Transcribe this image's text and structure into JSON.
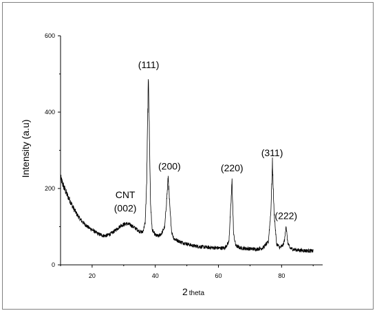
{
  "chart_data": {
    "type": "line",
    "title": "",
    "xlabel_main": "2",
    "xlabel_sub": "theta",
    "ylabel": "Intensity (a.u)",
    "xlim": [
      10,
      93
    ],
    "ylim": [
      0,
      600
    ],
    "xticks": [
      20,
      40,
      60,
      80
    ],
    "yticks": [
      0,
      200,
      400,
      600
    ],
    "grid": false,
    "series": [
      {
        "x": [
          10,
          11,
          12,
          13,
          14,
          15,
          16,
          17,
          18,
          19,
          20,
          21,
          22,
          23,
          24,
          25,
          26,
          27,
          28,
          29,
          30,
          31,
          32,
          33,
          34,
          35,
          36,
          36.8,
          37.3,
          37.6,
          37.85,
          38.1,
          38.5,
          39,
          40,
          41,
          42,
          43,
          43.6,
          44.1,
          44.6,
          45.2,
          46,
          48,
          50,
          52,
          54,
          56,
          58,
          60,
          62,
          63.3,
          63.9,
          64.3,
          64.8,
          65.5,
          67,
          70,
          72,
          74,
          75.8,
          76.6,
          77.1,
          77.6,
          78.4,
          79.5,
          80.5,
          81,
          81.4,
          81.9,
          82.6,
          84,
          86,
          88,
          90
        ],
        "y": [
          228,
          205,
          185,
          168,
          150,
          135,
          122,
          112,
          104,
          97,
          92,
          86,
          81,
          78,
          76,
          78,
          82,
          88,
          95,
          102,
          106,
          108,
          105,
          100,
          94,
          88,
          85,
          110,
          220,
          400,
          492,
          360,
          160,
          92,
          78,
          75,
          82,
          100,
          170,
          230,
          150,
          85,
          68,
          60,
          55,
          50,
          48,
          46,
          45,
          44,
          44,
          60,
          150,
          220,
          80,
          50,
          44,
          42,
          41,
          44,
          60,
          140,
          268,
          140,
          55,
          45,
          52,
          68,
          104,
          60,
          44,
          40,
          38,
          37,
          36
        ]
      }
    ],
    "annotations": [
      {
        "label": "(111)",
        "x": 37.9,
        "y": 515
      },
      {
        "label": "(200)",
        "x": 44.5,
        "y": 250
      },
      {
        "label": "(220)",
        "x": 64.3,
        "y": 245
      },
      {
        "label": "(311)",
        "x": 77.0,
        "y": 285
      },
      {
        "label": "(222)",
        "x": 81.4,
        "y": 120
      },
      {
        "label": "CNT",
        "x": 30.5,
        "y": 175
      },
      {
        "label": "(002)",
        "x": 30.5,
        "y": 140
      }
    ],
    "colors": {
      "line": "#000000",
      "axis": "#000000",
      "frame": "#7f7f7f"
    }
  }
}
